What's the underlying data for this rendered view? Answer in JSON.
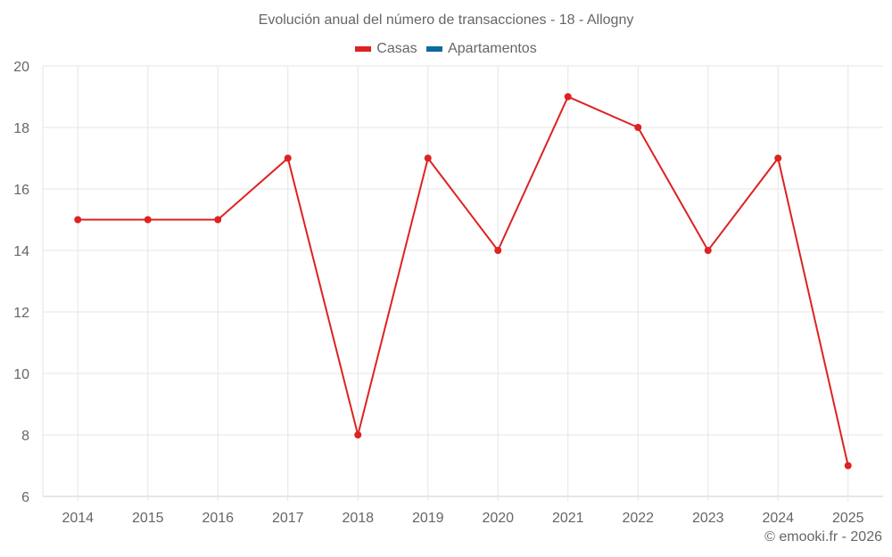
{
  "title": "Evolución anual del número de transacciones - 18 - Allogny",
  "legend": [
    {
      "label": "Casas",
      "color": "#dd2222"
    },
    {
      "label": "Apartamentos",
      "color": "#0b6aa2"
    }
  ],
  "copyright": "© emooki.fr - 2026",
  "chart_data": {
    "type": "line",
    "title": "Evolución anual del número de transacciones - 18 - Allogny",
    "xlabel": "",
    "ylabel": "",
    "categories": [
      "2014",
      "2015",
      "2016",
      "2017",
      "2018",
      "2019",
      "2020",
      "2021",
      "2022",
      "2023",
      "2024",
      "2025"
    ],
    "series": [
      {
        "name": "Casas",
        "color": "#dd2222",
        "values": [
          15,
          15,
          15,
          17,
          8,
          17,
          14,
          19,
          18,
          14,
          17,
          7
        ]
      },
      {
        "name": "Apartamentos",
        "color": "#0b6aa2",
        "values": []
      }
    ],
    "ylim": [
      6,
      20
    ],
    "yticks": [
      6,
      8,
      10,
      12,
      14,
      16,
      18,
      20
    ],
    "grid": true,
    "legend_position": "top"
  }
}
